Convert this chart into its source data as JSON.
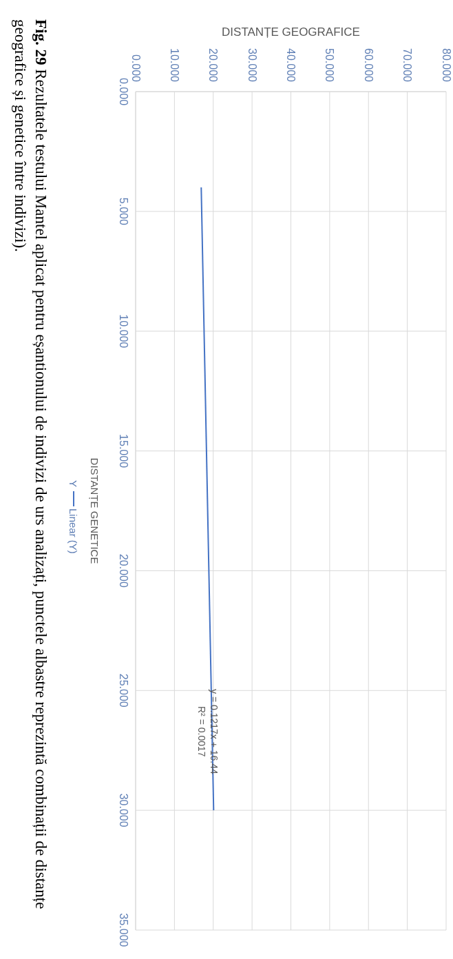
{
  "chart_data": {
    "type": "scatter",
    "xlabel": "DISTANȚE GEOGRAFICE",
    "ylabel": "DISTANȚE GENETICE",
    "xlim": [
      0,
      80
    ],
    "xticks": [
      {
        "value": 0,
        "label": "0.000"
      },
      {
        "value": 10,
        "label": "10.000"
      },
      {
        "value": 20,
        "label": "20.000"
      },
      {
        "value": 30,
        "label": "30.000"
      },
      {
        "value": 40,
        "label": "40.000"
      },
      {
        "value": 50,
        "label": "50.000"
      },
      {
        "value": 60,
        "label": "60.000"
      },
      {
        "value": 70,
        "label": "70.000"
      },
      {
        "value": 80,
        "label": "80.000"
      }
    ],
    "ylim": [
      35,
      0
    ],
    "yticks": [
      {
        "value": 0,
        "label": "0.000"
      },
      {
        "value": 5,
        "label": "5.000"
      },
      {
        "value": 10,
        "label": "10.000"
      },
      {
        "value": 15,
        "label": "15.000"
      },
      {
        "value": 20,
        "label": "20.000"
      },
      {
        "value": 25,
        "label": "25.000"
      },
      {
        "value": 30,
        "label": "30.000"
      },
      {
        "value": 35,
        "label": "35.000"
      }
    ],
    "grid": true,
    "legend": "left",
    "series": [
      {
        "name": "Y",
        "type": "scatter"
      },
      {
        "name": "Linear (Y)",
        "type": "line",
        "color": "#4472c4",
        "x": [
          16.9,
          20.1
        ],
        "values": [
          4.0,
          30.0
        ]
      }
    ],
    "annotations": [
      "y = 0.1217x + 16.44",
      "R² = 0.0017",
      "Fig. 29 Rezultatele testului Mantel aplicat pentru eșantionului de indivizi de urs analizați, punctele albastre reprezintă combinații de distanțe geografice și genetice între indivizi)."
    ]
  }
}
